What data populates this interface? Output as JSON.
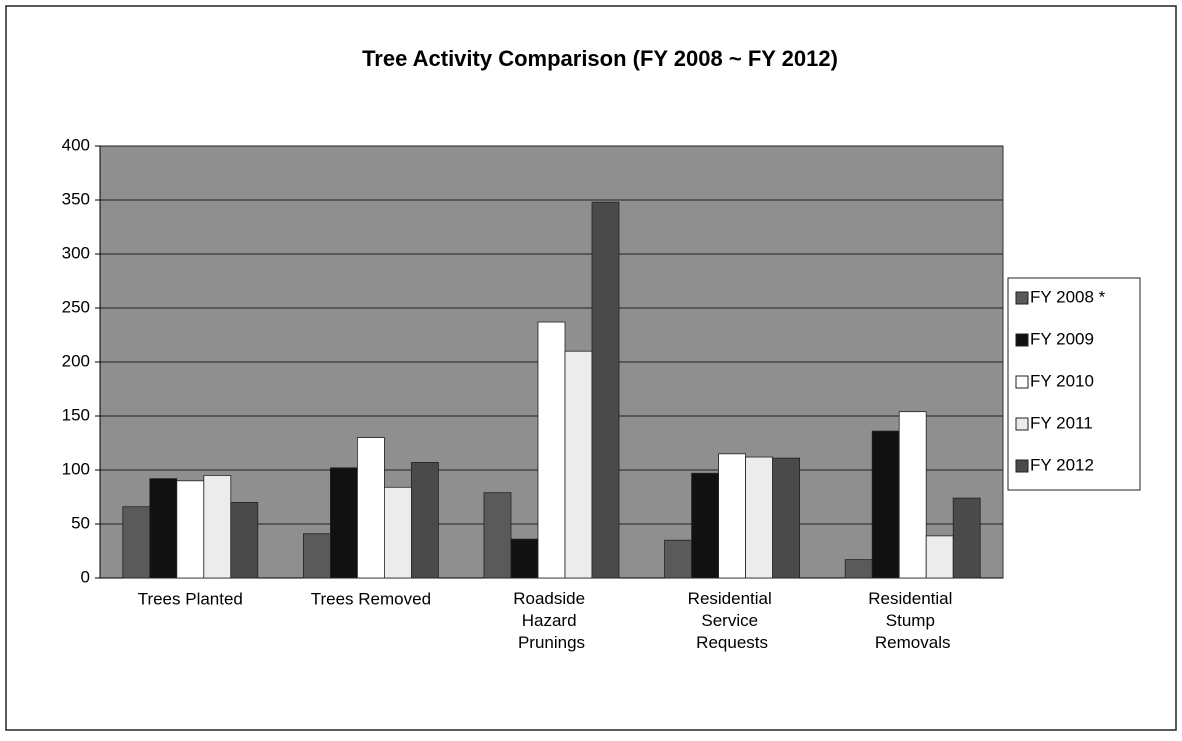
{
  "chart_data": {
    "type": "bar",
    "title": "Tree Activity Comparison (FY 2008 ~ FY 2012)",
    "categories": [
      "Trees Planted",
      "Trees Removed",
      "Roadside Hazard Prunings",
      "Residential Service Requests",
      "Residential Stump Removals"
    ],
    "series": [
      {
        "name": "FY 2008 *",
        "color": "#5a5a5a",
        "values": [
          66,
          41,
          79,
          35,
          17
        ]
      },
      {
        "name": "FY 2009",
        "color": "#111111",
        "values": [
          92,
          102,
          36,
          97,
          136
        ]
      },
      {
        "name": "FY 2010",
        "color": "#ffffff",
        "values": [
          90,
          130,
          237,
          115,
          154
        ]
      },
      {
        "name": "FY 2011",
        "color": "#ececec",
        "values": [
          95,
          84,
          210,
          112,
          39
        ]
      },
      {
        "name": "FY 2012",
        "color": "#4a4a4a",
        "values": [
          70,
          107,
          348,
          111,
          74
        ]
      }
    ],
    "ylim": [
      0,
      400
    ],
    "yticks": [
      0,
      50,
      100,
      150,
      200,
      250,
      300,
      350,
      400
    ],
    "grid": true,
    "legend": "right"
  }
}
